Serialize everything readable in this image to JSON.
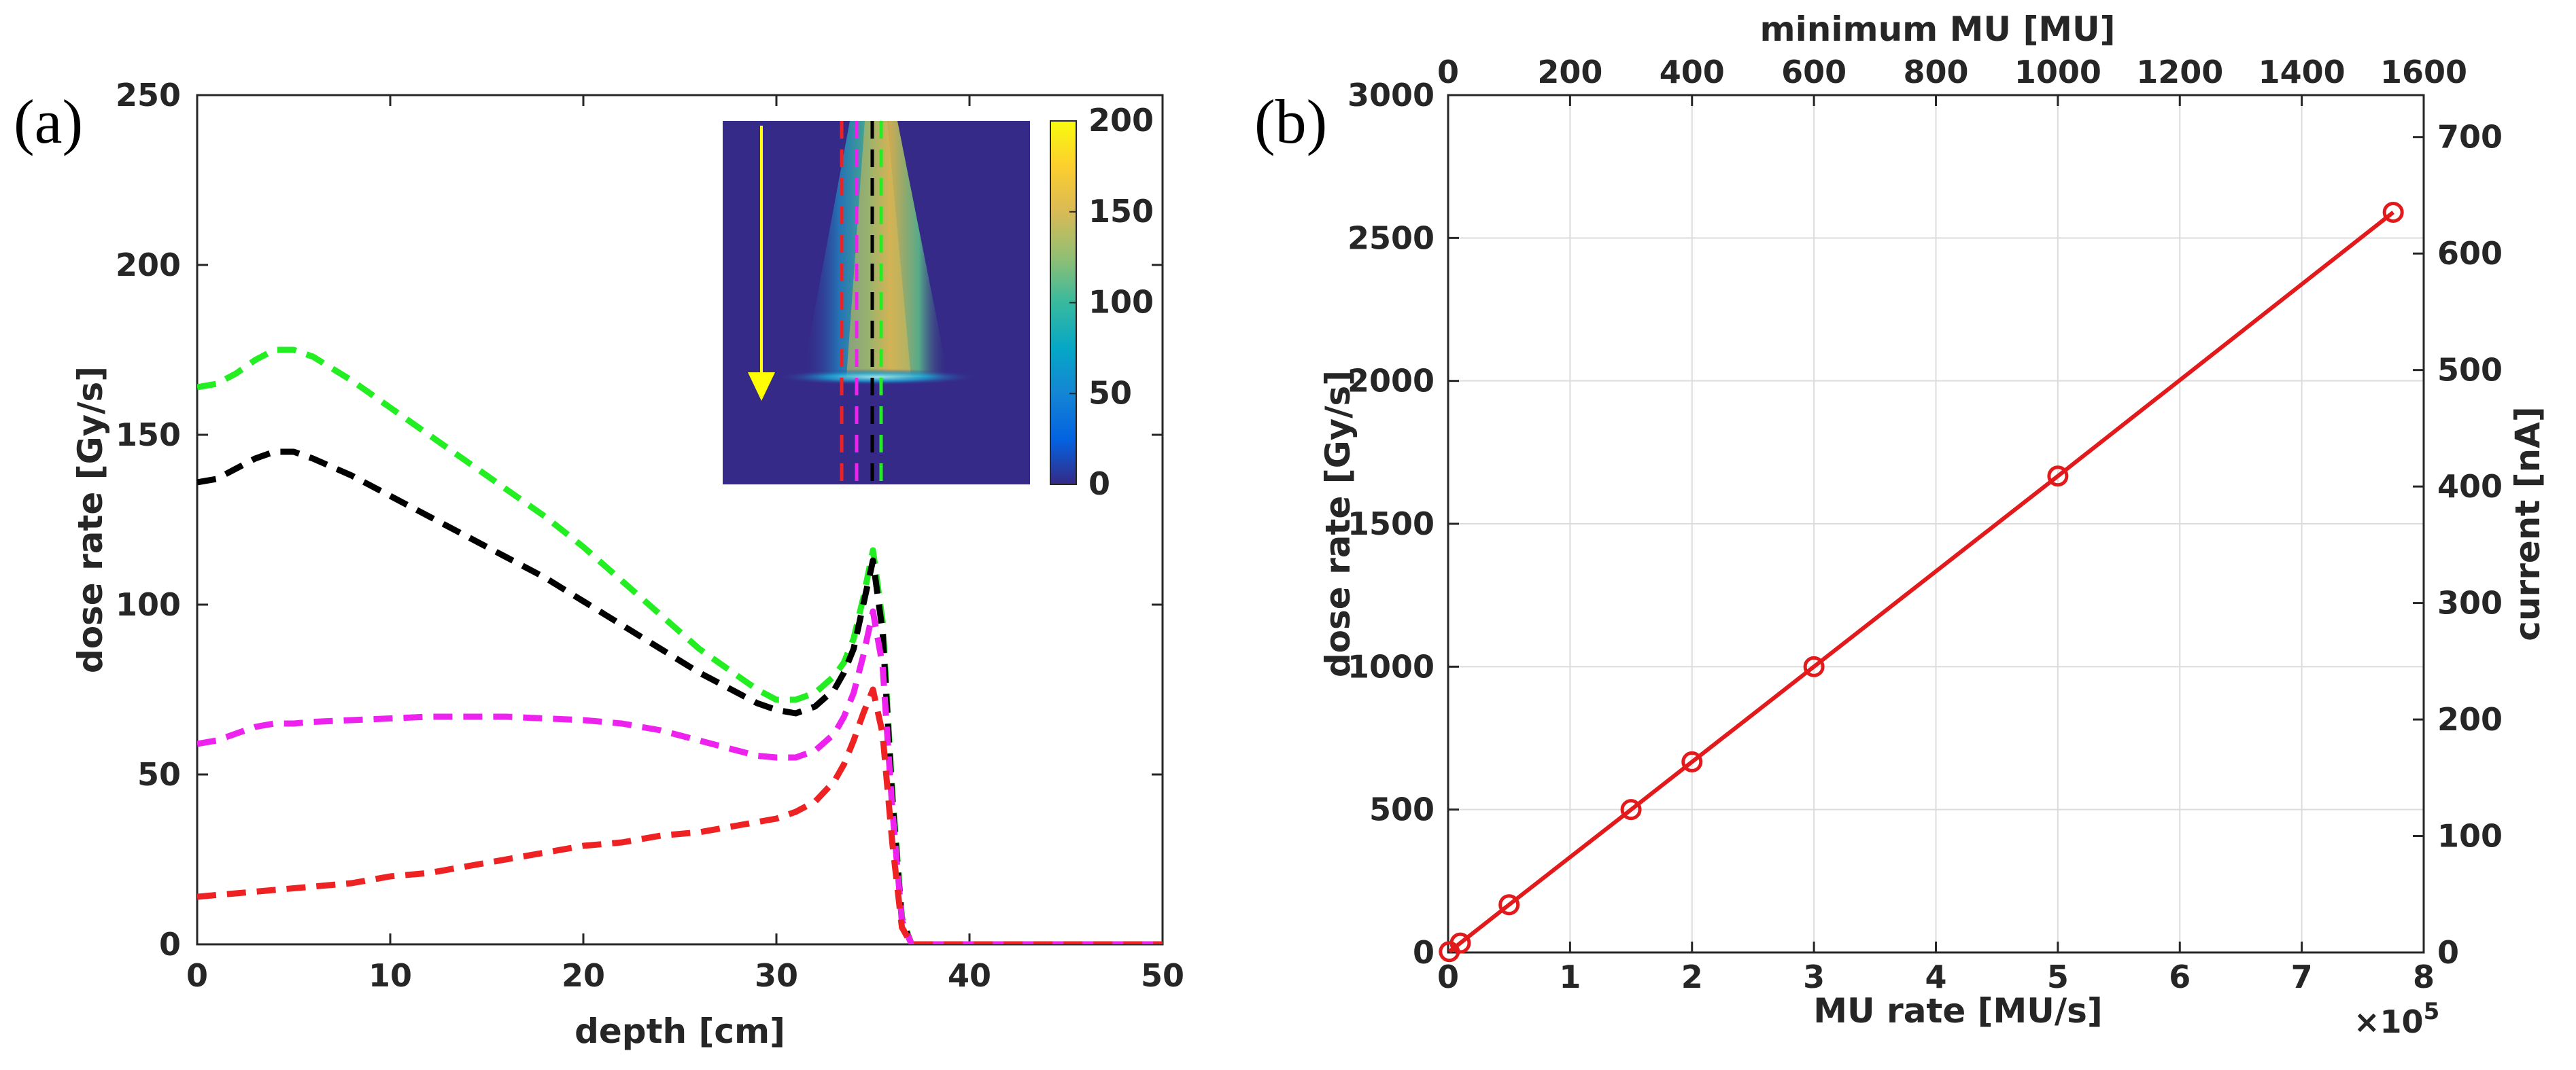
{
  "chart_data": [
    {
      "panel_label": "(a)",
      "type": "line",
      "xlabel": "depth [cm]",
      "ylabel": "dose rate [Gy/s]",
      "xlim": [
        0,
        50
      ],
      "ylim": [
        0,
        250
      ],
      "xticks": [
        "0",
        "10",
        "20",
        "30",
        "40",
        "50"
      ],
      "yticks": [
        "0",
        "50",
        "100",
        "150",
        "200",
        "250"
      ],
      "grid": false,
      "line_style": "dashed",
      "series": [
        {
          "name": "green",
          "color": "#22ee22",
          "x": [
            0,
            1,
            2,
            3,
            4,
            5,
            6,
            8,
            10,
            12,
            14,
            16,
            18,
            20,
            22,
            24,
            26,
            28,
            29,
            30,
            31,
            32,
            33,
            33.5,
            34,
            34.5,
            35,
            35.5,
            36,
            36.5,
            37,
            40,
            45,
            50
          ],
          "y": [
            164,
            165,
            168,
            172,
            175,
            175,
            173,
            166,
            158,
            150,
            142,
            134,
            126,
            117,
            107,
            97,
            87,
            79,
            75,
            72,
            72,
            74,
            79,
            83,
            90,
            102,
            116,
            95,
            45,
            8,
            0,
            0,
            0,
            0
          ]
        },
        {
          "name": "black",
          "color": "#000000",
          "x": [
            0,
            1,
            2,
            3,
            4,
            5,
            6,
            8,
            10,
            12,
            14,
            16,
            18,
            20,
            22,
            24,
            26,
            28,
            29,
            30,
            31,
            32,
            33,
            33.5,
            34,
            34.5,
            35,
            35.5,
            36,
            36.5,
            37,
            40,
            45,
            50
          ],
          "y": [
            136,
            137,
            140,
            143,
            145,
            145,
            143,
            138,
            132,
            126,
            120,
            114,
            108,
            101,
            94,
            87,
            80,
            74,
            71,
            69,
            68,
            70,
            75,
            80,
            87,
            100,
            113,
            92,
            43,
            7,
            0,
            0,
            0,
            0
          ]
        },
        {
          "name": "magenta",
          "color": "#ee22ee",
          "x": [
            0,
            1,
            2,
            3,
            4,
            5,
            6,
            8,
            10,
            12,
            14,
            16,
            18,
            20,
            22,
            24,
            26,
            28,
            29,
            30,
            31,
            32,
            33,
            33.5,
            34,
            34.5,
            35,
            35.5,
            36,
            36.5,
            37,
            40,
            45,
            50
          ],
          "y": [
            59,
            60,
            62,
            64,
            65,
            65,
            65.5,
            66,
            66.5,
            67,
            67,
            67,
            66.5,
            66,
            65,
            63,
            60,
            57,
            55.5,
            55,
            55,
            57,
            62,
            67,
            74,
            85,
            98,
            82,
            40,
            7,
            0,
            0,
            0,
            0
          ]
        },
        {
          "name": "red",
          "color": "#ee2222",
          "x": [
            0,
            2,
            4,
            6,
            8,
            10,
            12,
            14,
            16,
            18,
            20,
            22,
            24,
            26,
            28,
            30,
            31,
            32,
            33,
            33.5,
            34,
            34.5,
            35,
            35.5,
            36,
            36.5,
            37,
            40,
            45,
            50
          ],
          "y": [
            14,
            15,
            16,
            17,
            18,
            20,
            21,
            23,
            25,
            27,
            29,
            30,
            32,
            33,
            35,
            37,
            39,
            42,
            48,
            53,
            60,
            68,
            75,
            62,
            30,
            5,
            0,
            0,
            0,
            0
          ]
        }
      ],
      "inset": {
        "type": "heatmap",
        "colorbar_ticks": [
          "0",
          "50",
          "100",
          "150",
          "200"
        ],
        "colorbar_range": [
          0,
          200
        ],
        "dashed_line_colors": [
          "#ee2222",
          "#ee22ee",
          "#000000",
          "#22ee22"
        ],
        "arrow_color": "#ffff00"
      }
    },
    {
      "panel_label": "(b)",
      "type": "line",
      "xlabel": "MU rate [MU/s]",
      "ylabel": "dose rate [Gy/s]",
      "x2label": "minimum MU [MU]",
      "y2label": "current [nA]",
      "xlim": [
        0,
        8
      ],
      "ylim": [
        0,
        3000
      ],
      "x2lim": [
        0,
        1600
      ],
      "y2lim": [
        0,
        736
      ],
      "xticks": [
        "0",
        "1",
        "2",
        "3",
        "4",
        "5",
        "6",
        "7",
        "8"
      ],
      "yticks": [
        "0",
        "500",
        "1000",
        "1500",
        "2000",
        "2500",
        "3000"
      ],
      "x2ticks": [
        "0",
        "200",
        "400",
        "600",
        "800",
        "1000",
        "1200",
        "1400",
        "1600"
      ],
      "y2ticks": [
        "0",
        "100",
        "200",
        "300",
        "400",
        "500",
        "600",
        "700"
      ],
      "x_multiplier": "×10",
      "x_multiplier_exp": "5",
      "grid": true,
      "series": [
        {
          "name": "dose rate vs MU rate",
          "color": "#e31a1c",
          "marker": "circle",
          "x": [
            0.01,
            0.1,
            0.5,
            1.5,
            2.0,
            3.0,
            5.0,
            7.75
          ],
          "y": [
            3,
            33,
            167,
            500,
            667,
            1000,
            1667,
            2590
          ]
        }
      ]
    }
  ]
}
